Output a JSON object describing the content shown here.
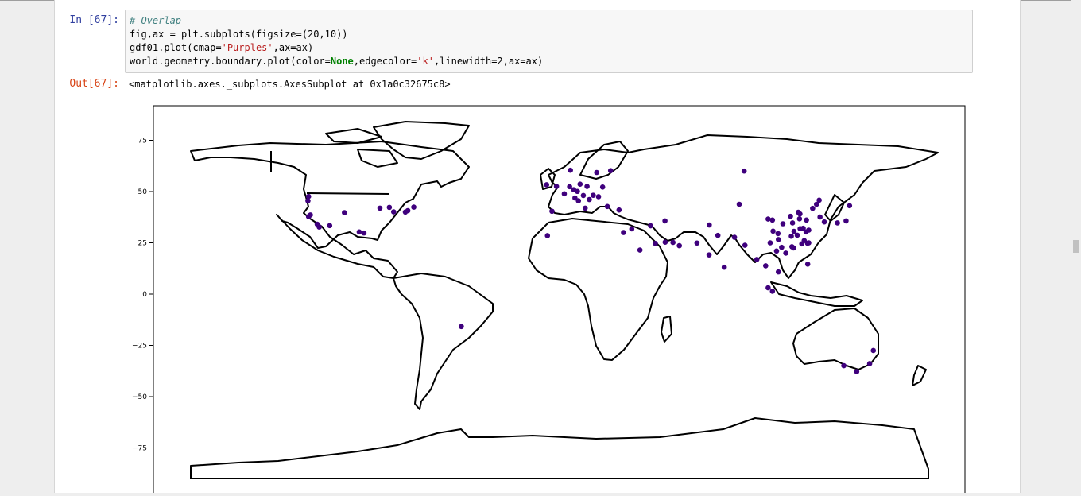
{
  "cell_in": {
    "prompt": "In [67]:",
    "code": {
      "comment": "# Overlap",
      "line2": "fig,ax = plt.subplots(figsize=(20,10))",
      "line3_pre": "gdf01.plot(cmap=",
      "line3_str": "'Purples'",
      "line3_post": ",ax=ax)",
      "line4_pre": "world.geometry.boundary.plot(color=",
      "line4_kw": "None",
      "line4_mid": ",edgecolor=",
      "line4_str": "'k'",
      "line4_post": ",linewidth=2,ax=ax)"
    }
  },
  "cell_out": {
    "prompt": "Out[67]:",
    "text": "<matplotlib.axes._subplots.AxesSubplot at 0x1a0c32675c8>"
  },
  "plot": {
    "ytick_labels": [
      "75",
      "50",
      "25",
      "0",
      "−25",
      "−50",
      "−75"
    ],
    "point_color": "#3f007d",
    "outline_color": "#000000"
  },
  "chart_data": {
    "type": "scatter",
    "title": "",
    "xlabel": "",
    "ylabel": "",
    "ylim": [
      -90,
      84
    ],
    "yticks": [
      75,
      50,
      25,
      0,
      -25,
      -50,
      -75
    ],
    "background": "world country boundaries (black outline)",
    "points": [
      [
        -122.4,
        47.6
      ],
      [
        -122.7,
        45.5
      ],
      [
        -122.4,
        37.8
      ],
      [
        -121.5,
        38.6
      ],
      [
        -118.2,
        34.1
      ],
      [
        -117.2,
        32.7
      ],
      [
        -112.1,
        33.4
      ],
      [
        -104.9,
        39.7
      ],
      [
        -97.7,
        30.3
      ],
      [
        -95.4,
        29.8
      ],
      [
        -87.6,
        41.9
      ],
      [
        -83.0,
        42.3
      ],
      [
        -80.9,
        40.1
      ],
      [
        -75.2,
        40.0
      ],
      [
        -74.0,
        40.7
      ],
      [
        -71.1,
        42.4
      ],
      [
        -47.9,
        -15.8
      ],
      [
        -3.7,
        40.4
      ],
      [
        -5.9,
        28.5
      ],
      [
        2.3,
        48.9
      ],
      [
        -1.5,
        52.5
      ],
      [
        4.9,
        52.4
      ],
      [
        6.9,
        50.9
      ],
      [
        10.0,
        53.6
      ],
      [
        13.4,
        52.5
      ],
      [
        8.7,
        50.1
      ],
      [
        11.6,
        48.1
      ],
      [
        7.5,
        46.9
      ],
      [
        9.2,
        45.5
      ],
      [
        12.5,
        41.9
      ],
      [
        18.1,
        59.3
      ],
      [
        24.9,
        60.2
      ],
      [
        14.5,
        46.1
      ],
      [
        16.4,
        48.2
      ],
      [
        21.0,
        52.2
      ],
      [
        23.3,
        42.7
      ],
      [
        19.0,
        47.5
      ],
      [
        5.3,
        60.4
      ],
      [
        -6.3,
        53.3
      ],
      [
        29.0,
        41.0
      ],
      [
        31.2,
        30.0
      ],
      [
        35.2,
        31.8
      ],
      [
        44.4,
        33.3
      ],
      [
        51.4,
        35.7
      ],
      [
        55.3,
        25.2
      ],
      [
        51.5,
        25.3
      ],
      [
        46.7,
        24.7
      ],
      [
        39.2,
        21.5
      ],
      [
        58.4,
        23.6
      ],
      [
        67.0,
        24.9
      ],
      [
        73.0,
        33.7
      ],
      [
        77.2,
        28.6
      ],
      [
        72.9,
        19.1
      ],
      [
        80.3,
        13.1
      ],
      [
        90.4,
        23.8
      ],
      [
        85.3,
        27.7
      ],
      [
        87.6,
        43.8
      ],
      [
        101.7,
        36.6
      ],
      [
        103.8,
        36.1
      ],
      [
        104.1,
        30.7
      ],
      [
        106.5,
        29.5
      ],
      [
        108.9,
        34.3
      ],
      [
        112.6,
        37.9
      ],
      [
        116.4,
        39.9
      ],
      [
        117.2,
        39.1
      ],
      [
        123.4,
        41.8
      ],
      [
        125.3,
        43.8
      ],
      [
        126.6,
        45.8
      ],
      [
        118.8,
        32.1
      ],
      [
        121.5,
        31.2
      ],
      [
        120.2,
        30.3
      ],
      [
        114.3,
        30.6
      ],
      [
        113.0,
        28.2
      ],
      [
        113.3,
        23.1
      ],
      [
        114.1,
        22.5
      ],
      [
        118.1,
        24.5
      ],
      [
        119.3,
        26.1
      ],
      [
        110.3,
        20.0
      ],
      [
        108.3,
        22.8
      ],
      [
        102.7,
        25.0
      ],
      [
        106.7,
        26.6
      ],
      [
        115.9,
        28.7
      ],
      [
        117.3,
        31.9
      ],
      [
        113.6,
        34.7
      ],
      [
        117.0,
        36.7
      ],
      [
        120.4,
        36.1
      ],
      [
        127.0,
        37.6
      ],
      [
        129.1,
        35.2
      ],
      [
        139.7,
        35.7
      ],
      [
        135.5,
        34.7
      ],
      [
        141.4,
        43.1
      ],
      [
        90.0,
        60.0
      ],
      [
        100.5,
        13.8
      ],
      [
        103.8,
        1.4
      ],
      [
        101.7,
        3.1
      ],
      [
        106.7,
        10.8
      ],
      [
        105.8,
        21.0
      ],
      [
        121.0,
        14.6
      ],
      [
        96.2,
        16.9
      ],
      [
        120.9,
        24.8
      ],
      [
        121.5,
        25.0
      ],
      [
        144.9,
        -37.8
      ],
      [
        151.2,
        -33.9
      ],
      [
        153.0,
        -27.5
      ],
      [
        138.6,
        -34.9
      ]
    ]
  }
}
